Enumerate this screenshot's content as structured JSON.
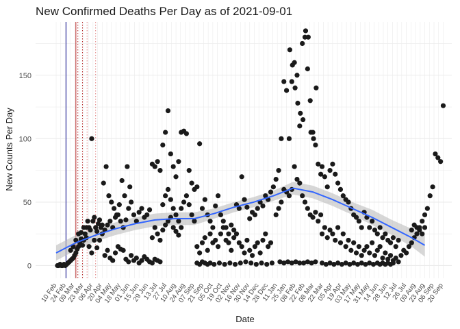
{
  "chart_data": {
    "type": "scatter",
    "title": "New Confirmed Deaths Per Day as of 2021-09-01",
    "xlabel": "Date",
    "ylabel": "New Counts Per Day",
    "y_ticks": [
      0,
      50,
      100,
      150
    ],
    "ylim": [
      -10,
      192
    ],
    "x_range_days": [
      0,
      574
    ],
    "grid": true,
    "colors": {
      "points": "#1a1a1a",
      "smooth_line": "#3366ff",
      "confidence_band": "#bdbdbd",
      "grid": "#ebebeb",
      "marker_blue": "#00008b",
      "marker_red": "#b22222",
      "marker_red_light": "#e08080"
    },
    "x_tick_labels": [
      "10 Feb",
      "24 Feb",
      "09 Mar",
      "23 Mar",
      "06 Apr",
      "20 Apr",
      "04 May",
      "18 May",
      "01 Jun",
      "15 Jun",
      "29 Jun",
      "13 Jul",
      "27 Jul",
      "10 Aug",
      "24 Aug",
      "07 Sep",
      "21 Sep",
      "05 Oct",
      "19 Oct",
      "02 Nov",
      "16 Nov",
      "30 Nov",
      "14 Dec",
      "28 Dec",
      "11 Jan",
      "25 Jan",
      "08 Feb",
      "22 Feb",
      "08 Mar",
      "22 Mar",
      "05 Apr",
      "19 Apr",
      "03 May",
      "17 May",
      "31 May",
      "14 Jun",
      "28 Jun",
      "12 Jul",
      "26 Jul",
      "09 Aug",
      "23 Aug",
      "06 Sep",
      "20 Sep"
    ],
    "x_tick_days": [
      1,
      15,
      28,
      42,
      56,
      70,
      84,
      98,
      112,
      126,
      140,
      154,
      168,
      182,
      196,
      210,
      224,
      238,
      252,
      266,
      280,
      294,
      308,
      322,
      336,
      350,
      364,
      378,
      392,
      406,
      420,
      434,
      448,
      462,
      476,
      490,
      504,
      518,
      532,
      546,
      560,
      574,
      588
    ],
    "vertical_markers": [
      {
        "day": 15,
        "style": "solid",
        "color": "#00008b"
      },
      {
        "day": 30,
        "style": "solid",
        "color": "#b22222"
      },
      {
        "day": 33,
        "style": "dotted",
        "color": "#b22222"
      },
      {
        "day": 40,
        "style": "dotted",
        "color": "#b22222"
      },
      {
        "day": 47,
        "style": "dotted",
        "color": "#e08080"
      },
      {
        "day": 60,
        "style": "dotted",
        "color": "#e08080"
      }
    ],
    "smooth": {
      "days": [
        0,
        30,
        60,
        90,
        120,
        150,
        180,
        210,
        240,
        270,
        300,
        330,
        360,
        390,
        420,
        450,
        480,
        510,
        540,
        560
      ],
      "values": [
        10,
        18,
        24,
        29,
        33,
        36,
        37,
        37,
        41,
        46,
        50,
        55,
        61,
        58,
        52,
        45,
        38,
        30,
        22,
        16
      ],
      "band": [
        6,
        6,
        5,
        5,
        5,
        5,
        5,
        5,
        4,
        4,
        4,
        4,
        5,
        5,
        5,
        5,
        6,
        6,
        7,
        9
      ]
    },
    "points": [
      [
        2,
        0
      ],
      [
        4,
        0
      ],
      [
        6,
        1
      ],
      [
        8,
        0
      ],
      [
        10,
        0
      ],
      [
        12,
        1
      ],
      [
        14,
        0
      ],
      [
        16,
        1
      ],
      [
        18,
        2
      ],
      [
        20,
        3
      ],
      [
        22,
        4
      ],
      [
        24,
        5
      ],
      [
        26,
        6
      ],
      [
        28,
        8
      ],
      [
        30,
        10
      ],
      [
        32,
        13
      ],
      [
        34,
        15
      ],
      [
        36,
        18
      ],
      [
        38,
        21
      ],
      [
        40,
        16
      ],
      [
        42,
        20
      ],
      [
        44,
        25
      ],
      [
        46,
        30
      ],
      [
        48,
        35
      ],
      [
        50,
        30
      ],
      [
        52,
        28
      ],
      [
        54,
        100
      ],
      [
        56,
        35
      ],
      [
        58,
        38
      ],
      [
        60,
        30
      ],
      [
        62,
        27
      ],
      [
        64,
        33
      ],
      [
        66,
        36
      ],
      [
        68,
        30
      ],
      [
        70,
        32
      ],
      [
        22,
        12
      ],
      [
        26,
        15
      ],
      [
        30,
        20
      ],
      [
        34,
        25
      ],
      [
        38,
        26
      ],
      [
        42,
        30
      ],
      [
        46,
        22
      ],
      [
        50,
        15
      ],
      [
        54,
        10
      ],
      [
        58,
        20
      ],
      [
        62,
        14
      ],
      [
        66,
        20
      ],
      [
        70,
        25
      ],
      [
        74,
        28
      ],
      [
        78,
        32
      ],
      [
        82,
        35
      ],
      [
        86,
        30
      ],
      [
        90,
        38
      ],
      [
        94,
        40
      ],
      [
        98,
        35
      ],
      [
        102,
        30
      ],
      [
        106,
        36
      ],
      [
        110,
        45
      ],
      [
        114,
        50
      ],
      [
        118,
        40
      ],
      [
        122,
        35
      ],
      [
        126,
        42
      ],
      [
        130,
        45
      ],
      [
        134,
        38
      ],
      [
        138,
        40
      ],
      [
        142,
        44
      ],
      [
        72,
        65
      ],
      [
        76,
        78
      ],
      [
        80,
        55
      ],
      [
        84,
        50
      ],
      [
        88,
        45
      ],
      [
        92,
        40
      ],
      [
        96,
        48
      ],
      [
        100,
        67
      ],
      [
        104,
        55
      ],
      [
        108,
        78
      ],
      [
        112,
        62
      ],
      [
        74,
        8
      ],
      [
        78,
        12
      ],
      [
        82,
        6
      ],
      [
        86,
        4
      ],
      [
        90,
        10
      ],
      [
        94,
        15
      ],
      [
        98,
        13
      ],
      [
        102,
        12
      ],
      [
        106,
        5
      ],
      [
        110,
        3
      ],
      [
        114,
        8
      ],
      [
        118,
        4
      ],
      [
        122,
        6
      ],
      [
        126,
        2
      ],
      [
        130,
        4
      ],
      [
        134,
        7
      ],
      [
        138,
        5
      ],
      [
        142,
        3
      ],
      [
        146,
        2
      ],
      [
        150,
        5
      ],
      [
        154,
        4
      ],
      [
        158,
        3
      ],
      [
        146,
        22
      ],
      [
        150,
        30
      ],
      [
        154,
        25
      ],
      [
        158,
        20
      ],
      [
        162,
        28
      ],
      [
        166,
        32
      ],
      [
        170,
        35
      ],
      [
        174,
        38
      ],
      [
        178,
        30
      ],
      [
        182,
        27
      ],
      [
        186,
        24
      ],
      [
        190,
        30
      ],
      [
        146,
        80
      ],
      [
        150,
        78
      ],
      [
        154,
        82
      ],
      [
        158,
        75
      ],
      [
        162,
        95
      ],
      [
        166,
        105
      ],
      [
        170,
        122
      ],
      [
        174,
        88
      ],
      [
        178,
        78
      ],
      [
        182,
        70
      ],
      [
        186,
        82
      ],
      [
        190,
        105
      ],
      [
        194,
        106
      ],
      [
        198,
        104
      ],
      [
        202,
        75
      ],
      [
        206,
        65
      ],
      [
        210,
        60
      ],
      [
        162,
        48
      ],
      [
        166,
        55
      ],
      [
        170,
        60
      ],
      [
        174,
        52
      ],
      [
        178,
        45
      ],
      [
        182,
        40
      ],
      [
        186,
        35
      ],
      [
        190,
        45
      ],
      [
        194,
        50
      ],
      [
        198,
        55
      ],
      [
        202,
        48
      ],
      [
        206,
        40
      ],
      [
        210,
        35
      ],
      [
        214,
        62
      ],
      [
        218,
        96
      ],
      [
        222,
        45
      ],
      [
        226,
        52
      ],
      [
        230,
        40
      ],
      [
        234,
        35
      ],
      [
        238,
        30
      ],
      [
        242,
        47
      ],
      [
        246,
        55
      ],
      [
        250,
        40
      ],
      [
        254,
        35
      ],
      [
        258,
        30
      ],
      [
        262,
        25
      ],
      [
        266,
        32
      ],
      [
        270,
        28
      ],
      [
        274,
        48
      ],
      [
        278,
        45
      ],
      [
        282,
        70
      ],
      [
        286,
        52
      ],
      [
        290,
        46
      ],
      [
        294,
        37
      ],
      [
        298,
        42
      ],
      [
        302,
        40
      ],
      [
        306,
        45
      ],
      [
        310,
        50
      ],
      [
        314,
        47
      ],
      [
        318,
        55
      ],
      [
        322,
        52
      ],
      [
        326,
        58
      ],
      [
        214,
        15
      ],
      [
        218,
        10
      ],
      [
        222,
        18
      ],
      [
        226,
        22
      ],
      [
        230,
        12
      ],
      [
        234,
        25
      ],
      [
        238,
        18
      ],
      [
        242,
        20
      ],
      [
        246,
        15
      ],
      [
        250,
        25
      ],
      [
        254,
        30
      ],
      [
        258,
        20
      ],
      [
        262,
        18
      ],
      [
        266,
        12
      ],
      [
        270,
        22
      ],
      [
        274,
        25
      ],
      [
        278,
        18
      ],
      [
        282,
        15
      ],
      [
        286,
        10
      ],
      [
        290,
        20
      ],
      [
        294,
        12
      ],
      [
        298,
        8
      ],
      [
        302,
        15
      ],
      [
        306,
        18
      ],
      [
        310,
        10
      ],
      [
        314,
        20
      ],
      [
        318,
        25
      ],
      [
        322,
        15
      ],
      [
        326,
        18
      ],
      [
        214,
        2
      ],
      [
        218,
        1
      ],
      [
        222,
        3
      ],
      [
        226,
        2
      ],
      [
        230,
        1
      ],
      [
        234,
        2
      ],
      [
        240,
        1
      ],
      [
        248,
        2
      ],
      [
        256,
        1
      ],
      [
        264,
        2
      ],
      [
        272,
        1
      ],
      [
        280,
        2
      ],
      [
        288,
        3
      ],
      [
        296,
        2
      ],
      [
        304,
        1
      ],
      [
        312,
        2
      ],
      [
        320,
        1
      ],
      [
        328,
        2
      ],
      [
        330,
        62
      ],
      [
        334,
        68
      ],
      [
        338,
        75
      ],
      [
        342,
        100
      ],
      [
        346,
        145
      ],
      [
        350,
        138
      ],
      [
        354,
        100
      ],
      [
        358,
        145
      ],
      [
        362,
        160
      ],
      [
        366,
        150
      ],
      [
        370,
        110
      ],
      [
        374,
        175
      ],
      [
        378,
        180
      ],
      [
        382,
        155
      ],
      [
        386,
        130
      ],
      [
        390,
        105
      ],
      [
        394,
        95
      ],
      [
        398,
        80
      ],
      [
        402,
        72
      ],
      [
        334,
        40
      ],
      [
        338,
        45
      ],
      [
        342,
        50
      ],
      [
        346,
        60
      ],
      [
        350,
        58
      ],
      [
        354,
        55
      ],
      [
        358,
        60
      ],
      [
        362,
        78
      ],
      [
        366,
        68
      ],
      [
        370,
        65
      ],
      [
        374,
        55
      ],
      [
        378,
        50
      ],
      [
        382,
        45
      ],
      [
        386,
        40
      ],
      [
        390,
        38
      ],
      [
        394,
        42
      ],
      [
        398,
        35
      ],
      [
        402,
        40
      ],
      [
        355,
        170
      ],
      [
        359,
        158
      ],
      [
        363,
        140
      ],
      [
        367,
        128
      ],
      [
        371,
        120
      ],
      [
        375,
        115
      ],
      [
        379,
        185
      ],
      [
        383,
        180
      ],
      [
        387,
        105
      ],
      [
        391,
        100
      ],
      [
        395,
        140
      ],
      [
        340,
        3
      ],
      [
        346,
        2
      ],
      [
        352,
        3
      ],
      [
        358,
        2
      ],
      [
        364,
        3
      ],
      [
        370,
        2
      ],
      [
        376,
        2
      ],
      [
        382,
        3
      ],
      [
        388,
        2
      ],
      [
        394,
        3
      ],
      [
        404,
        78
      ],
      [
        408,
        70
      ],
      [
        412,
        62
      ],
      [
        416,
        75
      ],
      [
        420,
        80
      ],
      [
        424,
        72
      ],
      [
        428,
        65
      ],
      [
        432,
        60
      ],
      [
        436,
        55
      ],
      [
        440,
        52
      ],
      [
        444,
        50
      ],
      [
        448,
        45
      ],
      [
        452,
        40
      ],
      [
        456,
        38
      ],
      [
        460,
        35
      ],
      [
        464,
        30
      ],
      [
        404,
        25
      ],
      [
        408,
        30
      ],
      [
        412,
        22
      ],
      [
        416,
        28
      ],
      [
        420,
        25
      ],
      [
        424,
        20
      ],
      [
        428,
        30
      ],
      [
        432,
        18
      ],
      [
        436,
        25
      ],
      [
        440,
        15
      ],
      [
        444,
        20
      ],
      [
        448,
        12
      ],
      [
        452,
        18
      ],
      [
        456,
        10
      ],
      [
        460,
        15
      ],
      [
        464,
        8
      ],
      [
        404,
        2
      ],
      [
        410,
        1
      ],
      [
        416,
        2
      ],
      [
        422,
        1
      ],
      [
        428,
        2
      ],
      [
        434,
        1
      ],
      [
        440,
        2
      ],
      [
        446,
        1
      ],
      [
        452,
        2
      ],
      [
        458,
        1
      ],
      [
        464,
        2
      ],
      [
        470,
        1
      ],
      [
        476,
        2
      ],
      [
        482,
        1
      ],
      [
        468,
        42
      ],
      [
        472,
        38
      ],
      [
        476,
        30
      ],
      [
        480,
        35
      ],
      [
        484,
        28
      ],
      [
        488,
        25
      ],
      [
        492,
        30
      ],
      [
        496,
        22
      ],
      [
        500,
        25
      ],
      [
        504,
        20
      ],
      [
        508,
        18
      ],
      [
        512,
        22
      ],
      [
        516,
        15
      ],
      [
        520,
        20
      ],
      [
        468,
        12
      ],
      [
        472,
        15
      ],
      [
        476,
        10
      ],
      [
        480,
        18
      ],
      [
        484,
        8
      ],
      [
        488,
        12
      ],
      [
        492,
        15
      ],
      [
        496,
        6
      ],
      [
        500,
        10
      ],
      [
        504,
        5
      ],
      [
        508,
        8
      ],
      [
        512,
        4
      ],
      [
        516,
        6
      ],
      [
        520,
        3
      ],
      [
        488,
        2
      ],
      [
        492,
        1
      ],
      [
        496,
        2
      ],
      [
        500,
        1
      ],
      [
        504,
        2
      ],
      [
        508,
        1
      ],
      [
        512,
        2
      ],
      [
        524,
        8
      ],
      [
        528,
        12
      ],
      [
        532,
        10
      ],
      [
        536,
        15
      ],
      [
        540,
        18
      ],
      [
        544,
        22
      ],
      [
        548,
        25
      ],
      [
        552,
        30
      ],
      [
        556,
        35
      ],
      [
        560,
        40
      ],
      [
        564,
        45
      ],
      [
        568,
        55
      ],
      [
        572,
        62
      ],
      [
        576,
        88
      ],
      [
        580,
        85
      ],
      [
        584,
        82
      ],
      [
        588,
        126
      ],
      [
        540,
        28
      ],
      [
        544,
        32
      ],
      [
        548,
        30
      ],
      [
        552,
        28
      ],
      [
        556,
        25
      ],
      [
        560,
        30
      ]
    ]
  }
}
